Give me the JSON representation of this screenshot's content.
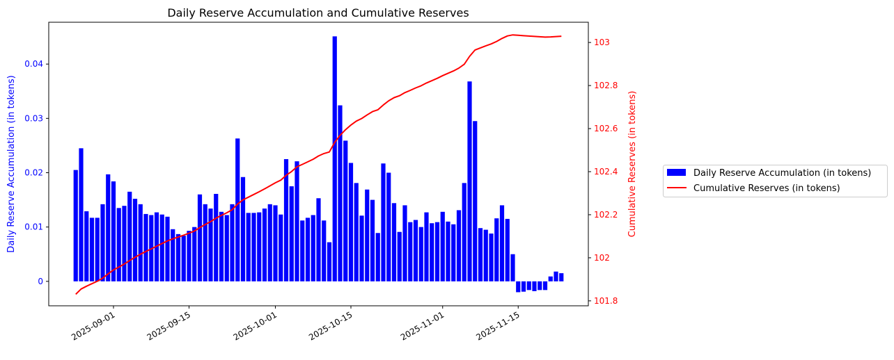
{
  "chart_data": {
    "type": "bar+line",
    "title": "Daily Reserve Accumulation and Cumulative Reserves",
    "xlabel": "",
    "ylabel_left": "Daily Reserve Accumulation (in tokens)",
    "ylabel_right": "Cumulative Reserves (in tokens)",
    "start_date": "2025-08-25",
    "xlim": [
      "2025-08-20",
      "2025-11-28"
    ],
    "ylim_left": [
      -0.0045,
      0.0477
    ],
    "ylim_right": [
      101.777,
      103.094
    ],
    "x_ticks": [
      "2025-09-01",
      "2025-09-15",
      "2025-10-01",
      "2025-10-15",
      "2025-11-01",
      "2025-11-15"
    ],
    "y_ticks_left": [
      {
        "v": 0,
        "label": "0"
      },
      {
        "v": 0.01,
        "label": "0.01"
      },
      {
        "v": 0.02,
        "label": "0.02"
      },
      {
        "v": 0.03,
        "label": "0.03"
      },
      {
        "v": 0.04,
        "label": "0.04"
      }
    ],
    "y_ticks_right": [
      {
        "v": 101.8,
        "label": "101.8"
      },
      {
        "v": 102,
        "label": "102"
      },
      {
        "v": 102.2,
        "label": "102.2"
      },
      {
        "v": 102.4,
        "label": "102.4"
      },
      {
        "v": 102.6,
        "label": "102.6"
      },
      {
        "v": 102.8,
        "label": "102.8"
      },
      {
        "v": 103,
        "label": "103"
      }
    ],
    "series": [
      {
        "name": "Daily Reserve Accumulation (in tokens)",
        "type": "bar",
        "color": "#0000ff",
        "values": [
          0.0205,
          0.0245,
          0.0129,
          0.0117,
          0.0117,
          0.0142,
          0.0197,
          0.0184,
          0.0135,
          0.0139,
          0.0165,
          0.0152,
          0.0142,
          0.0124,
          0.0122,
          0.0127,
          0.0123,
          0.0119,
          0.0096,
          0.0087,
          0.0084,
          0.0093,
          0.01,
          0.016,
          0.0142,
          0.0134,
          0.0161,
          0.0128,
          0.0122,
          0.0142,
          0.0263,
          0.0192,
          0.0126,
          0.0126,
          0.0127,
          0.0134,
          0.0142,
          0.014,
          0.0123,
          0.0225,
          0.0175,
          0.0221,
          0.0112,
          0.0117,
          0.0122,
          0.0153,
          0.0112,
          0.0072,
          0.0451,
          0.0324,
          0.0259,
          0.0218,
          0.0181,
          0.0121,
          0.0169,
          0.015,
          0.0089,
          0.0217,
          0.02,
          0.0144,
          0.0091,
          0.014,
          0.0109,
          0.0113,
          0.01,
          0.0127,
          0.0107,
          0.0109,
          0.0128,
          0.011,
          0.0105,
          0.0131,
          0.0181,
          0.0368,
          0.0295,
          0.0098,
          0.0095,
          0.0088,
          0.0116,
          0.014,
          0.0115,
          0.005,
          -0.002,
          -0.0019,
          -0.0016,
          -0.0018,
          -0.0016,
          -0.0016,
          0.0009,
          0.0018,
          0.0015
        ]
      },
      {
        "name": "Cumulative Reserves (in tokens)",
        "type": "line",
        "color": "#ff0000",
        "cumulative_base": 101.81,
        "note_values_are_cumsum_of_daily_plus_base": true
      }
    ],
    "legend": {
      "placement": "outside-right",
      "items": [
        "Daily Reserve Accumulation (in tokens)",
        "Cumulative Reserves (in tokens)"
      ]
    },
    "grid": false
  }
}
